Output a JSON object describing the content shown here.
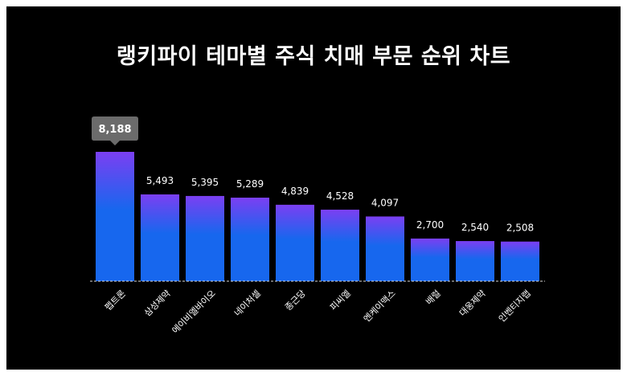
{
  "chart_data": {
    "type": "bar",
    "title": "랭키파이 테마별 주식 치매 부문 순위 차트",
    "categories": [
      "펩트론",
      "삼성제약",
      "에이비엘바이오",
      "네이처셀",
      "종근당",
      "피씨엘",
      "엔케이맥스",
      "배럴",
      "대웅제약",
      "인벤티지랩"
    ],
    "values": [
      8188,
      5493,
      5395,
      5289,
      4839,
      4528,
      4097,
      2700,
      2540,
      2508
    ],
    "value_labels": [
      "8,188",
      "5,493",
      "5,395",
      "5,289",
      "4,839",
      "4,528",
      "4,097",
      "2,700",
      "2,540",
      "2,508"
    ],
    "xlabel": "",
    "ylabel": "",
    "ylim": [
      0,
      8188
    ],
    "grid": false,
    "legend": "none",
    "highlighted_category": "펩트론",
    "colors": {
      "background": "#000000",
      "bar_top": "#7b3ff2",
      "bar_bottom": "#1767ee",
      "tooltip": "#6b6b6b",
      "baseline": "#d9d9d9",
      "text": "#ffffff"
    }
  }
}
